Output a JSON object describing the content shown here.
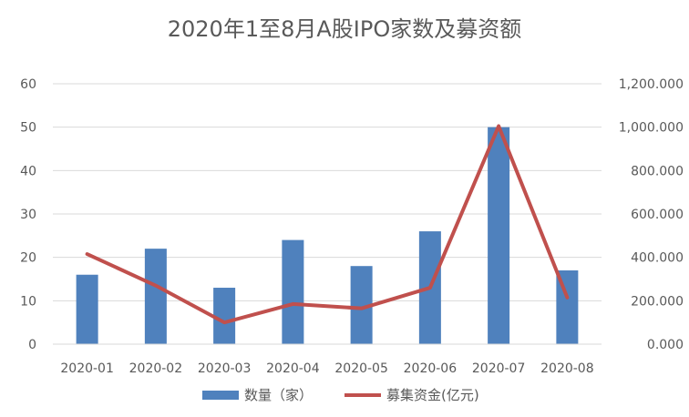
{
  "chart_data": {
    "type": "bar",
    "title": "2020年1至8月A股IPO家数及募资额",
    "categories": [
      "2020-01",
      "2020-02",
      "2020-03",
      "2020-04",
      "2020-05",
      "2020-06",
      "2020-07",
      "2020-08"
    ],
    "series": [
      {
        "name": "数量（家）",
        "type": "bar",
        "axis": "left",
        "color": "#4f81bd",
        "values": [
          16,
          22,
          13,
          24,
          18,
          26,
          50,
          17
        ]
      },
      {
        "name": "募集资金(亿元)",
        "type": "line",
        "axis": "right",
        "color": "#c0504d",
        "values": [
          415,
          270,
          100,
          185,
          165,
          260,
          1005,
          215
        ]
      }
    ],
    "y_left": {
      "min": 0,
      "max": 60,
      "ticks": [
        "0",
        "10",
        "20",
        "30",
        "40",
        "50",
        "60"
      ]
    },
    "y_right": {
      "min": 0,
      "max": 1200,
      "ticks": [
        "0.000",
        "200.000",
        "400.000",
        "600.000",
        "800.000",
        "1,000.000",
        "1,200.000"
      ]
    },
    "grid": true,
    "legend": "bottom"
  }
}
